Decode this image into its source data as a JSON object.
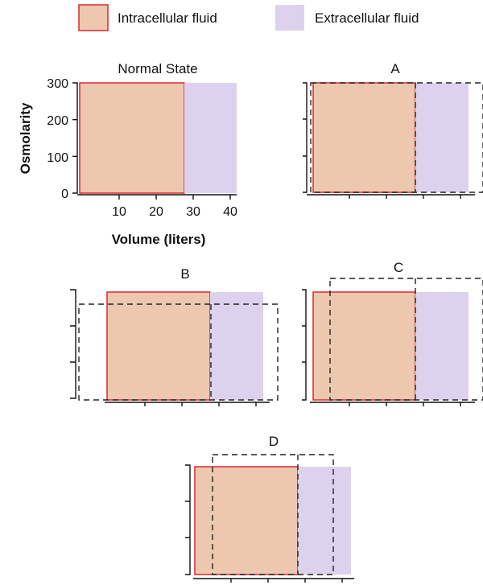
{
  "legend": {
    "intracellular": "Intracellular fluid",
    "extracellular": "Extracellular fluid"
  },
  "colors": {
    "intracellular_fill": "#eec8ae",
    "intracellular_stroke": "#d9282f",
    "extracellular_fill": "#ddd2ee",
    "extracellular_stroke": "#b7a6d6",
    "outline": "#222222"
  },
  "panels": {
    "normal": {
      "title": "Normal State"
    },
    "a": {
      "title": "A"
    },
    "b": {
      "title": "B"
    },
    "c": {
      "title": "C"
    },
    "d": {
      "title": "D"
    }
  },
  "axes": {
    "y_title": "Osmolarity",
    "x_title": "Volume (liters)",
    "y_ticks": [
      "0",
      "100",
      "200",
      "300"
    ],
    "x_ticks": [
      "10",
      "20",
      "30",
      "40"
    ]
  }
}
